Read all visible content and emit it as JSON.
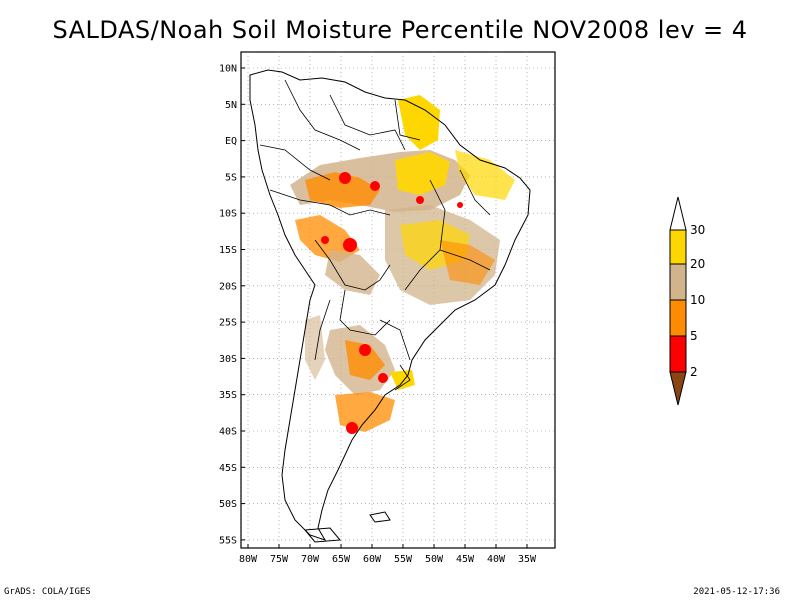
{
  "title": "SALDAS/Noah Soil Moisture Percentile NOV2008 lev = 4",
  "footer": {
    "left": "GrADS: COLA/IGES",
    "right": "2021-05-12-17:36"
  },
  "axes": {
    "lat_ticks": [
      "10N",
      "5N",
      "EQ",
      "5S",
      "10S",
      "15S",
      "20S",
      "25S",
      "30S",
      "35S",
      "40S",
      "45S",
      "50S",
      "55S"
    ],
    "lon_ticks": [
      "80W",
      "75W",
      "70W",
      "65W",
      "60W",
      "55W",
      "50W",
      "45W",
      "40W",
      "35W"
    ]
  },
  "colorbar": {
    "levels": [
      "2",
      "5",
      "10",
      "20",
      "30"
    ],
    "colors": {
      "below_2": "#8b4513",
      "2_5": "#ff0000",
      "5_10": "#ff8c00",
      "10_20": "#d2b48c",
      "20_30": "#ffd700",
      "above_30": "#ffffff"
    }
  },
  "grid": {
    "style": "dotted",
    "shown": true
  }
}
